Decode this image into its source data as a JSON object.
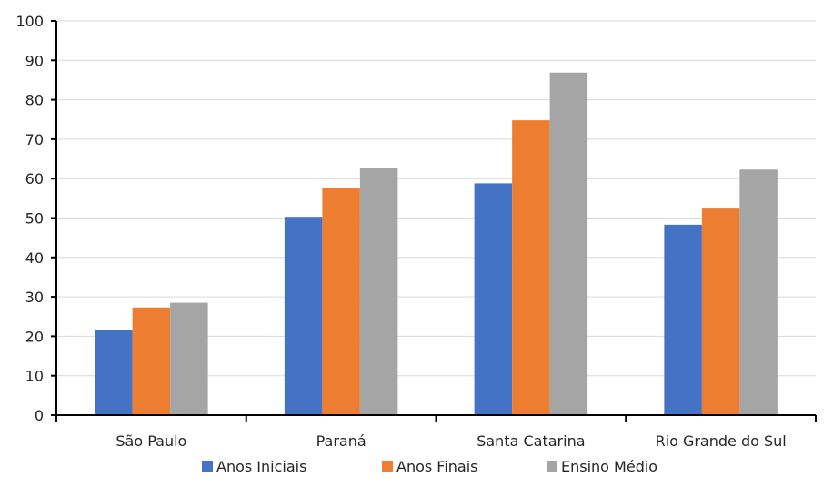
{
  "chart_data": {
    "type": "bar",
    "title": "",
    "xlabel": "",
    "ylabel": "",
    "ylim": [
      0,
      100
    ],
    "yticks": [
      0,
      10,
      20,
      30,
      40,
      50,
      60,
      70,
      80,
      90,
      100
    ],
    "categories": [
      "São Paulo",
      "Paraná",
      "Santa Catarina",
      "Rio Grande do Sul"
    ],
    "series": [
      {
        "name": "Anos Iniciais",
        "color": "#4472C4",
        "values": [
          21.5,
          50.3,
          58.8,
          48.3
        ]
      },
      {
        "name": "Anos Finais",
        "color": "#ED7D31",
        "values": [
          27.3,
          57.5,
          74.8,
          52.4
        ]
      },
      {
        "name": "Ensino Médio",
        "color": "#A5A5A5",
        "values": [
          28.5,
          62.6,
          86.9,
          62.3
        ]
      }
    ],
    "grid": true,
    "legend_position": "bottom"
  }
}
